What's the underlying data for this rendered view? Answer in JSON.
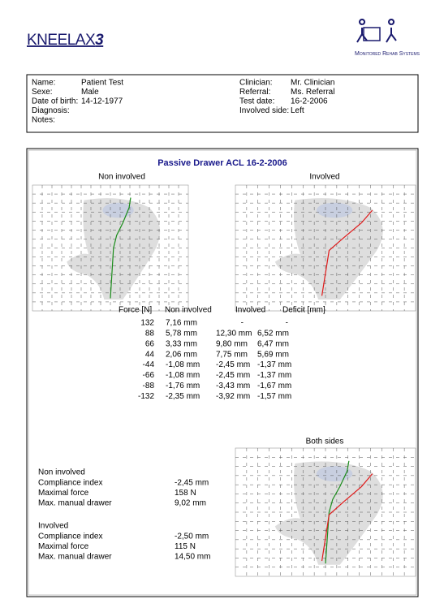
{
  "header": {
    "brand": "KNEELAX",
    "brand_suffix": "3",
    "company": "Monitored Rehab Systems"
  },
  "patient": {
    "left": [
      {
        "label": "Name:",
        "value": "Patient Test"
      },
      {
        "label": "Sexe:",
        "value": "Male"
      },
      {
        "label": "Date of birth:",
        "value": "14-12-1977"
      },
      {
        "label": "Diagnosis:"
      },
      {
        "label": "Notes:"
      }
    ],
    "right": [
      {
        "label": "Clinician:",
        "value": "Mr. Clinician"
      },
      {
        "label": "Referral:",
        "value": "Ms. Referral"
      },
      {
        "label": "Test date:",
        "value": "16-2-2006"
      },
      {
        "label": "Involved side:",
        "value": "Left"
      }
    ]
  },
  "report": {
    "title": "Passive Drawer ACL  16-2-2006",
    "plots": {
      "non_involved": "Non involved",
      "involved": "Involved",
      "both": "Both sides"
    },
    "table": {
      "headers": [
        "Force [N]",
        "Non involved",
        "Involved",
        "Deficit [mm]"
      ],
      "rows": [
        [
          "132",
          "7,16 mm",
          "-",
          "-"
        ],
        [
          "88",
          "5,78 mm",
          "12,30 mm",
          "6,52 mm"
        ],
        [
          "66",
          "3,33 mm",
          "9,80 mm",
          "6,47 mm"
        ],
        [
          "44",
          "2,06 mm",
          "7,75 mm",
          "5,69 mm"
        ],
        [
          "-44",
          "-1,08 mm",
          "-2,45 mm",
          "-1,37 mm"
        ],
        [
          "-66",
          "-1,08 mm",
          "-2,45 mm",
          "-1,37 mm"
        ],
        [
          "-88",
          "-1,76 mm",
          "-3,43 mm",
          "-1,67 mm"
        ],
        [
          "-132",
          "-2,35 mm",
          "-3,92 mm",
          "-1,57 mm"
        ]
      ]
    },
    "summary": [
      {
        "group": "Non involved",
        "items": [
          {
            "label": "Compliance index",
            "value": "-2,45 mm"
          },
          {
            "label": "Maximal force",
            "value": "158 N"
          },
          {
            "label": "Max. manual drawer",
            "value": "9,02 mm"
          }
        ]
      },
      {
        "group": "Involved",
        "items": [
          {
            "label": "Compliance index",
            "value": "-2,50 mm"
          },
          {
            "label": "Maximal force",
            "value": "115 N"
          },
          {
            "label": "Max. manual drawer",
            "value": "14,50 mm"
          }
        ]
      }
    ]
  }
}
